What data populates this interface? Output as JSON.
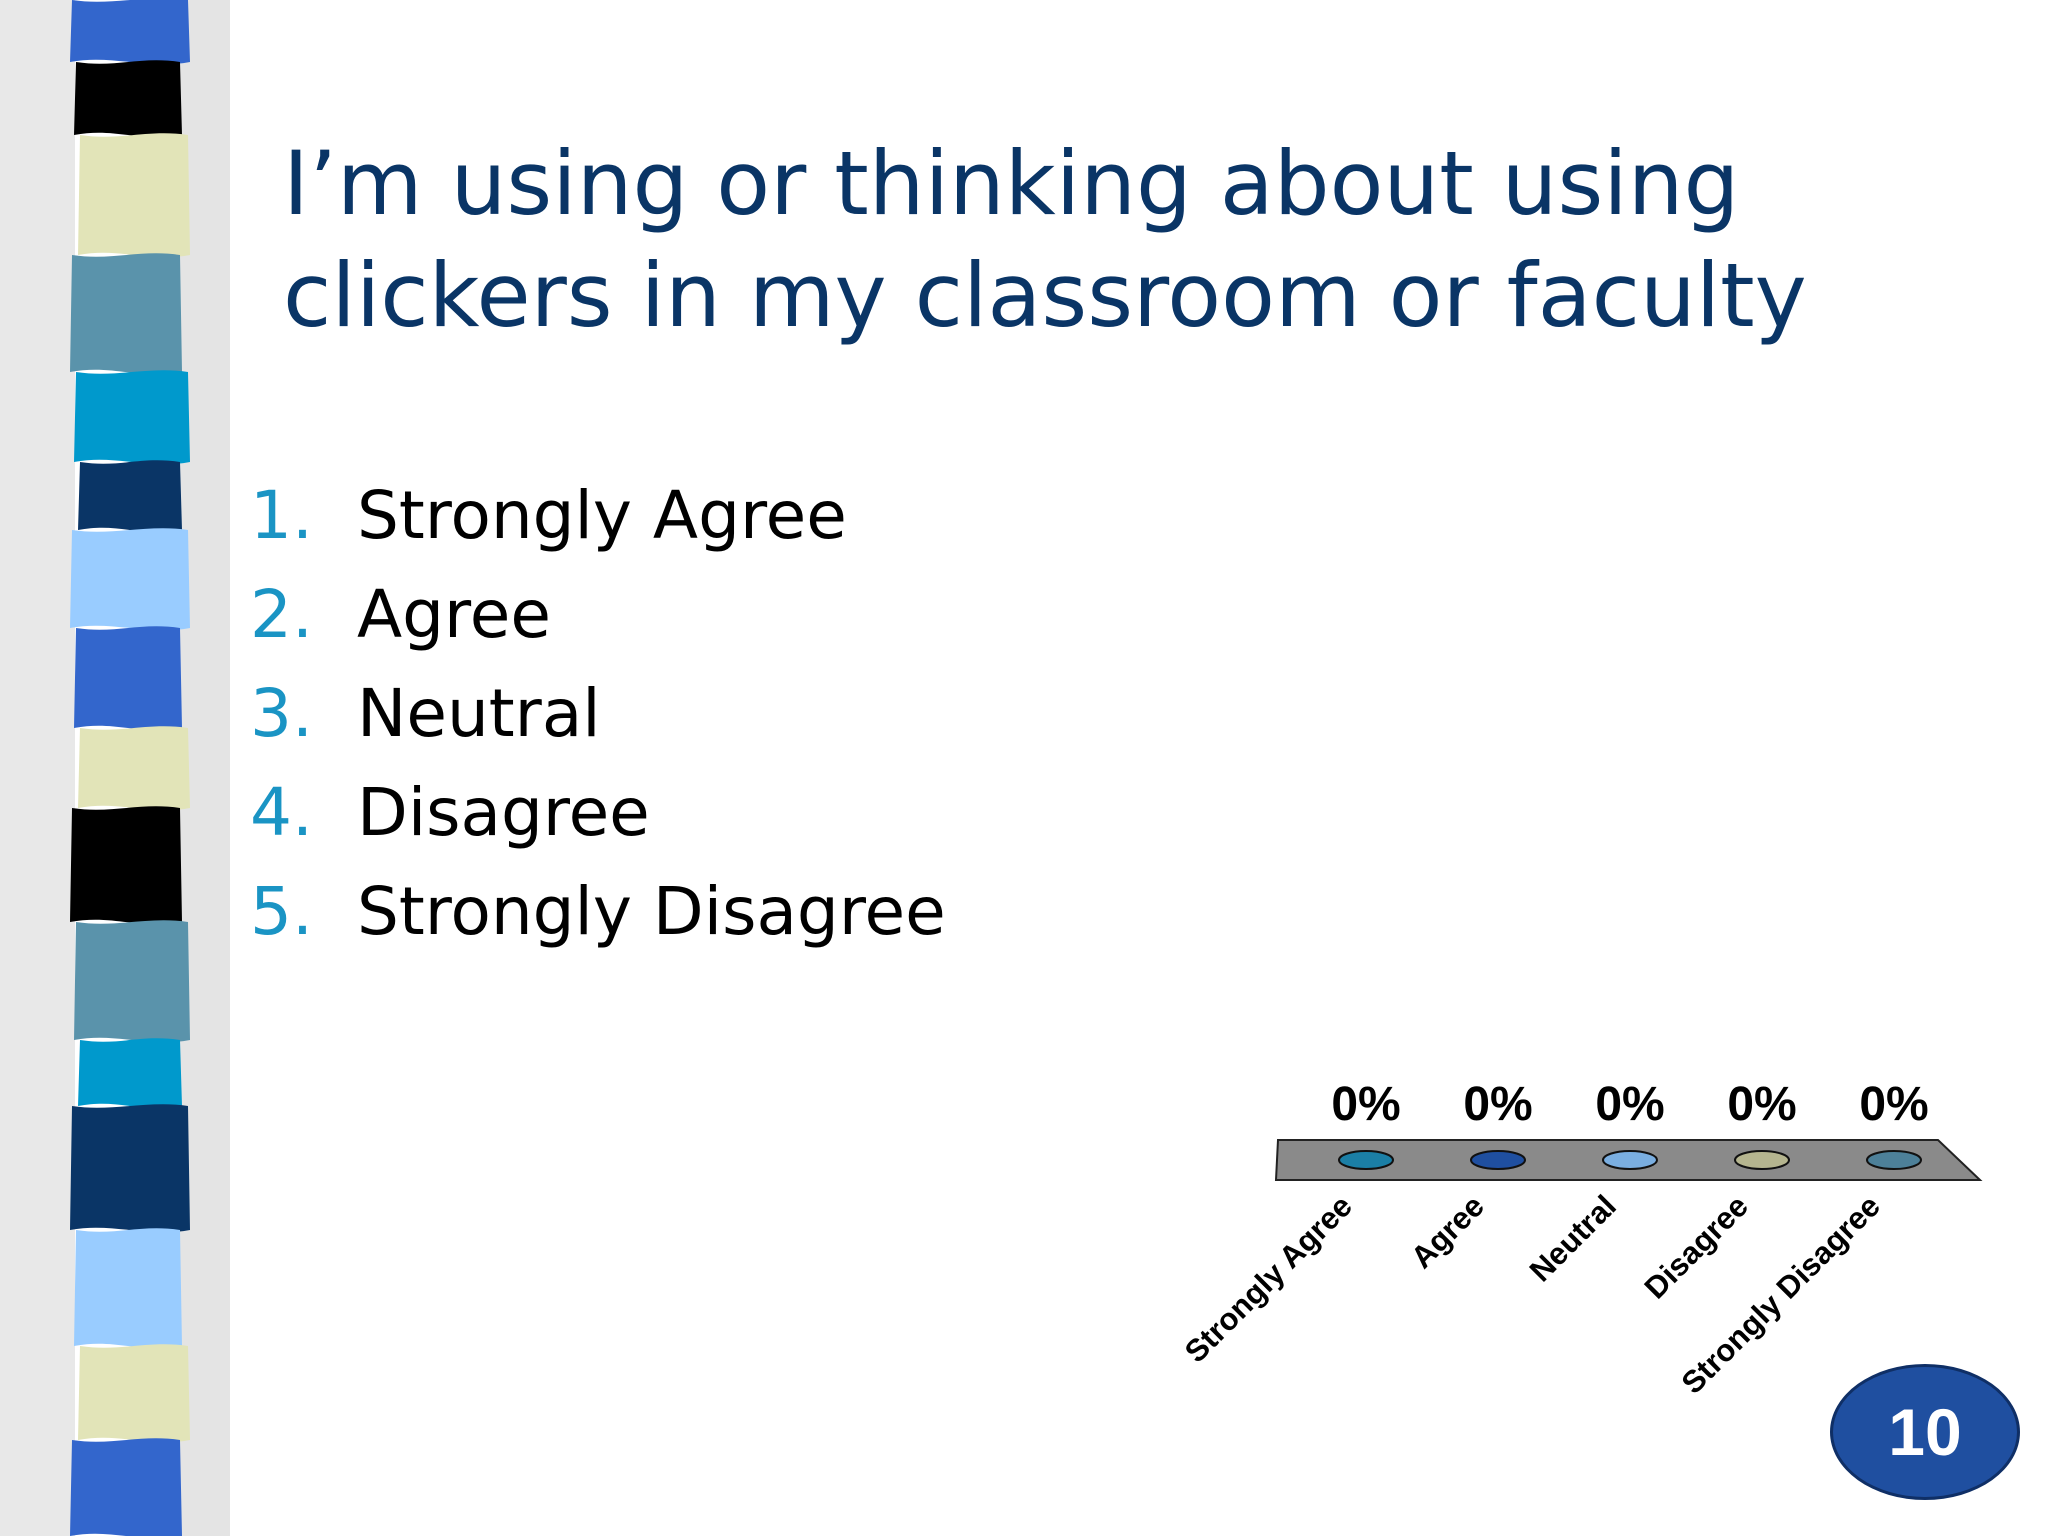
{
  "slide": {
    "title": "I’m using or thinking about using clickers in my classroom or faculty",
    "answers": [
      {
        "number": "1.",
        "label": "Strongly Agree"
      },
      {
        "number": "2.",
        "label": "Agree"
      },
      {
        "number": "3.",
        "label": "Neutral"
      },
      {
        "number": "4.",
        "label": "Disagree"
      },
      {
        "number": "5.",
        "label": "Strongly Disagree"
      }
    ],
    "slide_number": "10",
    "colors": {
      "title": "#0a3566",
      "number": "#1a94c4",
      "stripe_palette": [
        "#3366cc",
        "#000000",
        "#e2e4b8",
        "#5a93ab",
        "#0099cc",
        "#0a3566",
        "#99ccff"
      ]
    }
  },
  "chart_data": {
    "type": "bar",
    "categories": [
      "Strongly Agree",
      "Agree",
      "Neutral",
      "Disagree",
      "Strongly Disagree"
    ],
    "values": [
      0,
      0,
      0,
      0,
      0
    ],
    "value_labels": [
      "0%",
      "0%",
      "0%",
      "0%",
      "0%"
    ],
    "series_colors": [
      "#1b7fa6",
      "#1f4fa0",
      "#7aaee0",
      "#b5b58f",
      "#4d8099"
    ],
    "unit": "%",
    "ylim": [
      0,
      100
    ],
    "grid": false,
    "legend": "none",
    "style": "3d"
  }
}
